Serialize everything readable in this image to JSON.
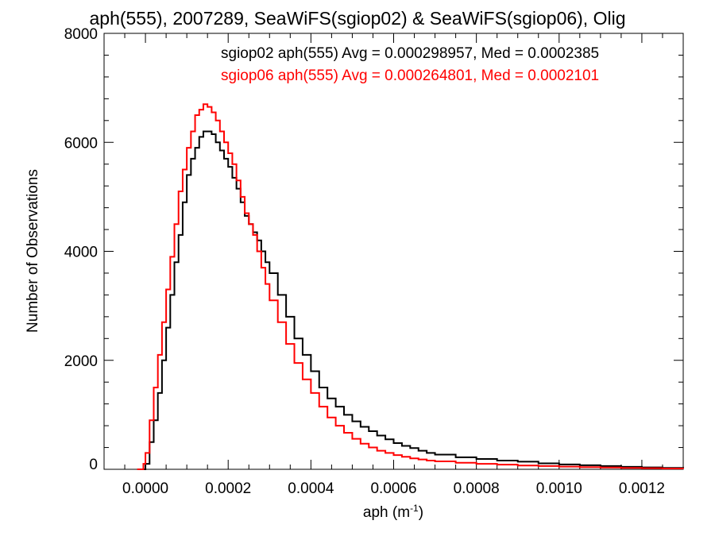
{
  "chart_data": {
    "type": "line",
    "title": "aph(555), 2007289, SeaWiFS(sgiop02) & SeaWiFS(sgiop06), Olig",
    "xlabel": "aph (m",
    "xlabel_exp": "-1",
    "xlabel_close": ")",
    "ylabel": "Number of Observations",
    "xlim": [
      -0.0001,
      0.0013
    ],
    "ylim": [
      0,
      8000
    ],
    "xticks": [
      0.0,
      0.0002,
      0.0004,
      0.0006,
      0.0008,
      0.001,
      0.0012
    ],
    "xtick_labels": [
      "0.0000",
      "0.0002",
      "0.0004",
      "0.0006",
      "0.0008",
      "0.0010",
      "0.0012"
    ],
    "yticks": [
      0,
      2000,
      4000,
      6000,
      8000
    ],
    "ytick_labels": [
      "0",
      "2000",
      "4000",
      "6000",
      "8000"
    ],
    "grid": false,
    "legend": "top-right",
    "series": [
      {
        "name": "sgiop02",
        "legend_text": "sgiop02 aph(555) Avg = 0.000298957, Med = 0.0002385",
        "color": "#000000",
        "x": [
          -1e-05,
          -5e-06,
          0.0,
          1e-05,
          2e-05,
          3e-05,
          4e-05,
          5e-05,
          6e-05,
          7e-05,
          8e-05,
          9e-05,
          0.0001,
          0.00011,
          0.00012,
          0.00013,
          0.00014,
          0.00015,
          0.00016,
          0.00017,
          0.00018,
          0.00019,
          0.0002,
          0.00021,
          0.00022,
          0.00023,
          0.00024,
          0.00025,
          0.00026,
          0.00027,
          0.00028,
          0.00029,
          0.0003,
          0.00032,
          0.00034,
          0.00036,
          0.00038,
          0.0004,
          0.00042,
          0.00044,
          0.00046,
          0.00048,
          0.0005,
          0.00052,
          0.00054,
          0.00056,
          0.00058,
          0.0006,
          0.00062,
          0.00064,
          0.00066,
          0.00068,
          0.0007,
          0.00075,
          0.0008,
          0.00085,
          0.0009,
          0.00095,
          0.001,
          0.00105,
          0.0011,
          0.00115,
          0.0012,
          0.00125,
          0.0013
        ],
        "values": [
          0,
          0,
          100,
          500,
          900,
          1400,
          2000,
          2600,
          3200,
          3800,
          4300,
          4900,
          5400,
          5700,
          5900,
          6100,
          6200,
          6200,
          6150,
          6000,
          5850,
          5700,
          5550,
          5350,
          5150,
          4900,
          4650,
          4500,
          4350,
          4200,
          4000,
          3800,
          3600,
          3200,
          2800,
          2400,
          2100,
          1800,
          1500,
          1300,
          1150,
          1000,
          880,
          780,
          700,
          620,
          550,
          480,
          430,
          390,
          340,
          300,
          270,
          220,
          190,
          160,
          140,
          110,
          90,
          75,
          60,
          45,
          35,
          25,
          20
        ]
      },
      {
        "name": "sgiop06",
        "legend_text": "sgiop06 aph(555) Avg = 0.000264801, Med = 0.0002101",
        "color": "#ff0000",
        "x": [
          -2e-05,
          -1e-05,
          -5e-06,
          0.0,
          1e-05,
          2e-05,
          3e-05,
          4e-05,
          5e-05,
          6e-05,
          7e-05,
          8e-05,
          9e-05,
          0.0001,
          0.00011,
          0.00012,
          0.00013,
          0.00014,
          0.00015,
          0.00016,
          0.00017,
          0.00018,
          0.00019,
          0.0002,
          0.00021,
          0.00022,
          0.00023,
          0.00024,
          0.00025,
          0.00026,
          0.00027,
          0.00028,
          0.00029,
          0.0003,
          0.00032,
          0.00034,
          0.00036,
          0.00038,
          0.0004,
          0.00042,
          0.00044,
          0.00046,
          0.00048,
          0.0005,
          0.00052,
          0.00054,
          0.00056,
          0.00058,
          0.0006,
          0.00062,
          0.00064,
          0.00066,
          0.00068,
          0.0007,
          0.00075,
          0.0008,
          0.00085,
          0.0009,
          0.00095,
          0.001,
          0.00105,
          0.0011,
          0.00115,
          0.0012,
          0.00125,
          0.0013
        ],
        "values": [
          0,
          0,
          100,
          300,
          900,
          1500,
          2100,
          2700,
          3300,
          3900,
          4500,
          5100,
          5500,
          5900,
          6200,
          6500,
          6600,
          6700,
          6650,
          6550,
          6400,
          6200,
          6000,
          5800,
          5600,
          5300,
          5000,
          4700,
          4500,
          4300,
          4000,
          3700,
          3400,
          3100,
          2700,
          2300,
          1950,
          1650,
          1400,
          1150,
          950,
          800,
          670,
          560,
          470,
          400,
          340,
          300,
          260,
          230,
          200,
          180,
          160,
          145,
          120,
          100,
          85,
          70,
          60,
          50,
          40,
          32,
          25,
          20,
          15,
          12
        ]
      }
    ]
  }
}
